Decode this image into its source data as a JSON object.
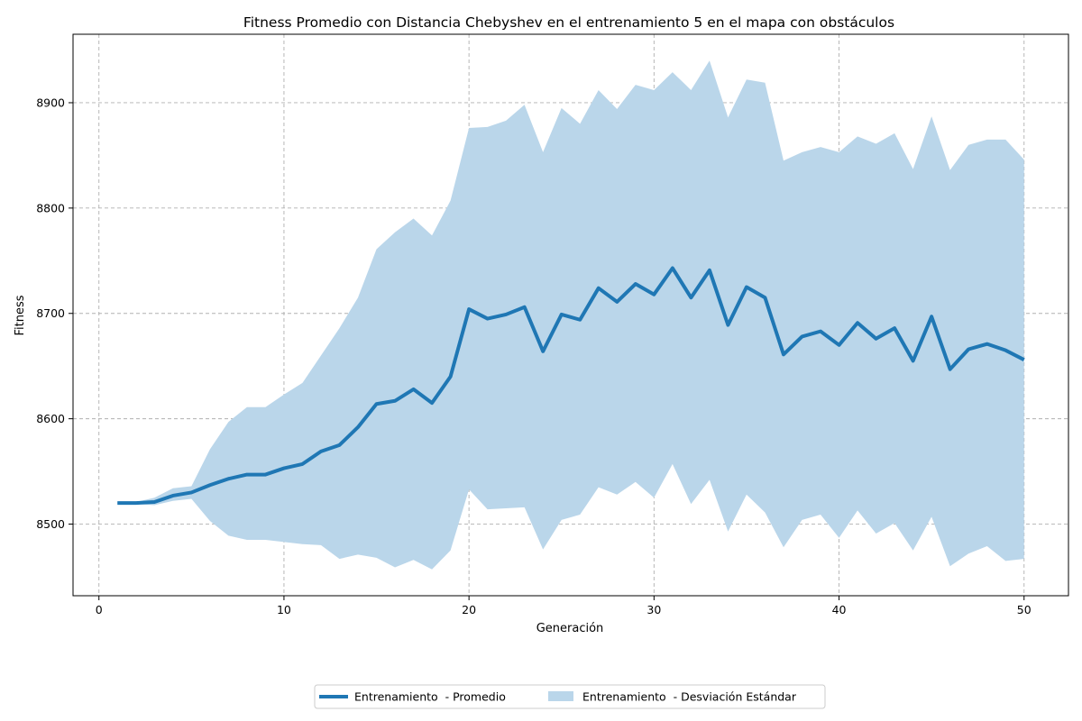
{
  "chart_data": {
    "type": "line",
    "title": "Fitness Promedio con Distancia Chebyshev en el entrenamiento 5 en el mapa con obstáculos",
    "xlabel": "Generación",
    "ylabel": "Fitness",
    "xlim": [
      -1.4,
      52.4
    ],
    "ylim": [
      8432,
      8965
    ],
    "xticks": [
      0,
      10,
      20,
      30,
      40,
      50
    ],
    "yticks": [
      8500,
      8600,
      8700,
      8800,
      8900
    ],
    "grid": true,
    "legend_position": "bottom-center",
    "colors": {
      "line": "#1f77b4",
      "band": "#bad6ea"
    },
    "x": [
      1,
      2,
      3,
      4,
      5,
      6,
      7,
      8,
      9,
      10,
      11,
      12,
      13,
      14,
      15,
      16,
      17,
      18,
      19,
      20,
      21,
      22,
      23,
      24,
      25,
      26,
      27,
      28,
      29,
      30,
      31,
      32,
      33,
      34,
      35,
      36,
      37,
      38,
      39,
      40,
      41,
      42,
      43,
      44,
      45,
      46,
      47,
      48,
      49,
      50
    ],
    "series": [
      {
        "name": "Entrenamiento  - Promedio",
        "type": "line",
        "values": [
          8520,
          8520,
          8521,
          8527,
          8530,
          8537,
          8543,
          8547,
          8547,
          8553,
          8557,
          8569,
          8575,
          8592,
          8614,
          8617,
          8628,
          8615,
          8640,
          8704,
          8695,
          8699,
          8706,
          8664,
          8699,
          8694,
          8724,
          8711,
          8728,
          8718,
          8743,
          8715,
          8741,
          8689,
          8725,
          8715,
          8661,
          8678,
          8683,
          8670,
          8691,
          8676,
          8686,
          8655,
          8697,
          8647,
          8666,
          8671,
          8665,
          8656
        ]
      },
      {
        "name": "Entrenamiento  - Desviación Estándar",
        "type": "band",
        "upper": [
          8521,
          8521,
          8525,
          8534,
          8536,
          8571,
          8597,
          8611,
          8611,
          8623,
          8634,
          8660,
          8686,
          8715,
          8761,
          8777,
          8790,
          8774,
          8807,
          8876,
          8877,
          8883,
          8898,
          8853,
          8895,
          8880,
          8912,
          8894,
          8917,
          8912,
          8929,
          8912,
          8940,
          8886,
          8922,
          8919,
          8845,
          8853,
          8858,
          8853,
          8868,
          8861,
          8871,
          8837,
          8887,
          8836,
          8860,
          8865,
          8865,
          8846
        ],
        "lower": [
          8519,
          8519,
          8518,
          8522,
          8524,
          8503,
          8489,
          8485,
          8485,
          8483,
          8481,
          8480,
          8467,
          8471,
          8468,
          8459,
          8466,
          8457,
          8475,
          8533,
          8514,
          8515,
          8516,
          8476,
          8504,
          8509,
          8535,
          8528,
          8540,
          8525,
          8557,
          8519,
          8542,
          8493,
          8528,
          8511,
          8478,
          8504,
          8509,
          8487,
          8513,
          8491,
          8501,
          8475,
          8507,
          8460,
          8472,
          8479,
          8465,
          8467
        ]
      }
    ]
  }
}
